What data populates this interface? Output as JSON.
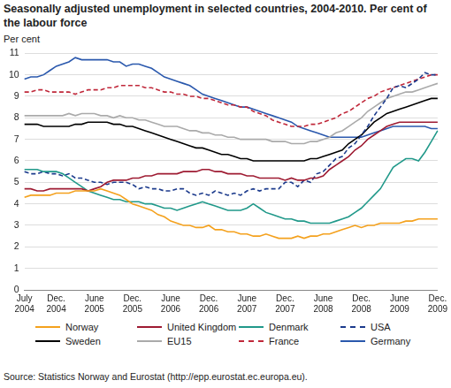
{
  "chart_data": {
    "type": "line",
    "title": "Seasonally adjusted unemployment in selected countries, 2004-2010. Per cent of the labour force",
    "y_label": "Per cent",
    "source": "Source: Statistics Norway and Eurostat (http://epp.eurostat.ec.europa.eu).",
    "categories": [
      "July 2004",
      null,
      null,
      null,
      null,
      "Dec. 2004",
      null,
      null,
      null,
      null,
      null,
      "June 2005",
      null,
      null,
      null,
      null,
      null,
      "Dec. 2005",
      null,
      null,
      null,
      null,
      null,
      "June 2006",
      null,
      null,
      null,
      null,
      null,
      "Dec. 2006",
      null,
      null,
      null,
      null,
      null,
      "June 2007",
      null,
      null,
      null,
      null,
      null,
      "Dec. 2007",
      null,
      null,
      null,
      null,
      null,
      "June 2008",
      null,
      null,
      null,
      null,
      null,
      "Dec. 2008",
      null,
      null,
      null,
      null,
      null,
      "June 2009",
      null,
      null,
      null,
      null,
      null,
      "Dec. 2009"
    ],
    "ylim": [
      0,
      11
    ],
    "yticks": [
      0,
      1,
      2,
      3,
      4,
      5,
      6,
      7,
      8,
      9,
      10,
      11
    ],
    "grid": "y",
    "legend": "bottom",
    "series": [
      {
        "name": "Norway",
        "color": "#f4a11d",
        "line_style": "solid",
        "values": [
          4.3,
          4.4,
          4.4,
          4.4,
          4.4,
          4.5,
          4.5,
          4.5,
          4.6,
          4.6,
          4.6,
          4.6,
          4.7,
          4.6,
          4.5,
          4.4,
          4.2,
          4.0,
          3.9,
          3.8,
          3.7,
          3.5,
          3.4,
          3.2,
          3.1,
          3.0,
          3.0,
          2.9,
          2.9,
          3.0,
          2.8,
          2.8,
          2.7,
          2.7,
          2.6,
          2.6,
          2.5,
          2.5,
          2.6,
          2.5,
          2.4,
          2.4,
          2.4,
          2.5,
          2.4,
          2.5,
          2.5,
          2.6,
          2.6,
          2.7,
          2.8,
          2.9,
          3.0,
          2.9,
          3.0,
          3.0,
          3.1,
          3.1,
          3.1,
          3.1,
          3.2,
          3.2,
          3.3,
          3.3,
          3.3,
          3.3
        ]
      },
      {
        "name": "United Kingdom",
        "color": "#9e1b32",
        "line_style": "solid",
        "values": [
          4.7,
          4.7,
          4.6,
          4.6,
          4.7,
          4.7,
          4.7,
          4.7,
          4.7,
          4.7,
          4.6,
          4.7,
          4.8,
          5.0,
          5.1,
          5.1,
          5.1,
          5.2,
          5.2,
          5.3,
          5.3,
          5.4,
          5.4,
          5.4,
          5.4,
          5.5,
          5.5,
          5.5,
          5.6,
          5.6,
          5.5,
          5.5,
          5.4,
          5.4,
          5.4,
          5.3,
          5.3,
          5.2,
          5.2,
          5.2,
          5.2,
          5.1,
          5.2,
          5.1,
          5.1,
          5.2,
          5.2,
          5.3,
          5.6,
          5.8,
          6.0,
          6.2,
          6.5,
          6.7,
          7.0,
          7.2,
          7.4,
          7.6,
          7.7,
          7.8,
          7.8,
          7.8,
          7.8,
          7.8,
          7.8,
          7.8
        ]
      },
      {
        "name": "Denmark",
        "color": "#21998a",
        "line_style": "solid",
        "values": [
          5.6,
          5.6,
          5.6,
          5.5,
          5.5,
          5.5,
          5.4,
          5.2,
          5.0,
          4.8,
          4.6,
          4.5,
          4.4,
          4.3,
          4.2,
          4.2,
          4.1,
          4.1,
          4.1,
          4.0,
          4.0,
          3.9,
          3.8,
          3.8,
          3.7,
          3.8,
          3.9,
          4.0,
          4.1,
          4.0,
          3.9,
          3.8,
          3.7,
          3.7,
          3.7,
          3.8,
          4.0,
          3.8,
          3.6,
          3.5,
          3.4,
          3.3,
          3.3,
          3.2,
          3.2,
          3.1,
          3.1,
          3.1,
          3.1,
          3.2,
          3.3,
          3.4,
          3.6,
          3.8,
          4.1,
          4.4,
          4.7,
          5.2,
          5.7,
          5.9,
          6.1,
          6.1,
          6.0,
          6.4,
          6.9,
          7.4
        ]
      },
      {
        "name": "USA",
        "color": "#1b3a8c",
        "line_style": "dashed",
        "values": [
          5.5,
          5.4,
          5.4,
          5.5,
          5.4,
          5.4,
          5.3,
          5.4,
          5.2,
          5.2,
          5.1,
          5.0,
          5.0,
          4.9,
          5.0,
          5.0,
          5.0,
          4.9,
          4.7,
          4.8,
          4.7,
          4.7,
          4.6,
          4.6,
          4.7,
          4.7,
          4.5,
          4.4,
          4.5,
          4.4,
          4.6,
          4.5,
          4.4,
          4.5,
          4.4,
          4.6,
          4.7,
          4.6,
          4.7,
          4.7,
          4.7,
          5.0,
          5.0,
          4.8,
          5.1,
          5.0,
          5.4,
          5.5,
          5.8,
          6.1,
          6.2,
          6.6,
          6.8,
          7.2,
          7.6,
          8.1,
          8.5,
          8.9,
          9.4,
          9.5,
          9.4,
          9.6,
          9.8,
          10.1,
          10.0,
          10.0
        ]
      },
      {
        "name": "Sweden",
        "color": "#000000",
        "line_style": "solid",
        "values": [
          7.7,
          7.7,
          7.7,
          7.6,
          7.6,
          7.6,
          7.6,
          7.6,
          7.7,
          7.7,
          7.8,
          7.8,
          7.8,
          7.8,
          7.7,
          7.7,
          7.6,
          7.6,
          7.5,
          7.4,
          7.3,
          7.2,
          7.1,
          7.0,
          6.9,
          6.8,
          6.7,
          6.6,
          6.6,
          6.5,
          6.4,
          6.3,
          6.3,
          6.2,
          6.1,
          6.1,
          6.0,
          6.0,
          6.0,
          6.0,
          6.0,
          6.0,
          6.0,
          6.0,
          6.0,
          6.1,
          6.1,
          6.2,
          6.3,
          6.4,
          6.5,
          6.8,
          7.0,
          7.2,
          7.5,
          7.8,
          8.0,
          8.2,
          8.3,
          8.4,
          8.5,
          8.6,
          8.7,
          8.8,
          8.9,
          8.9
        ]
      },
      {
        "name": "EU15",
        "color": "#aaaaaa",
        "line_style": "solid",
        "values": [
          8.1,
          8.1,
          8.1,
          8.1,
          8.1,
          8.1,
          8.1,
          8.2,
          8.1,
          8.2,
          8.2,
          8.2,
          8.1,
          8.1,
          8.0,
          8.1,
          8.0,
          8.0,
          7.9,
          7.9,
          7.8,
          7.7,
          7.6,
          7.6,
          7.6,
          7.5,
          7.4,
          7.4,
          7.3,
          7.3,
          7.2,
          7.2,
          7.1,
          7.1,
          7.0,
          7.0,
          7.0,
          7.0,
          7.0,
          6.9,
          6.9,
          6.9,
          6.8,
          6.8,
          6.8,
          6.9,
          6.9,
          7.0,
          7.1,
          7.3,
          7.4,
          7.6,
          7.8,
          8.0,
          8.3,
          8.5,
          8.7,
          8.9,
          9.0,
          9.1,
          9.2,
          9.2,
          9.3,
          9.4,
          9.5,
          9.6
        ]
      },
      {
        "name": "France",
        "color": "#c0283a",
        "line_style": "dashed",
        "values": [
          9.2,
          9.2,
          9.3,
          9.3,
          9.2,
          9.2,
          9.2,
          9.2,
          9.1,
          9.2,
          9.3,
          9.3,
          9.3,
          9.4,
          9.4,
          9.5,
          9.5,
          9.5,
          9.5,
          9.4,
          9.4,
          9.3,
          9.2,
          9.2,
          9.1,
          9.1,
          9.0,
          9.0,
          8.9,
          8.9,
          8.8,
          8.7,
          8.6,
          8.6,
          8.5,
          8.5,
          8.3,
          8.2,
          8.1,
          7.9,
          7.8,
          7.7,
          7.6,
          7.6,
          7.6,
          7.7,
          7.7,
          7.8,
          7.9,
          8.0,
          8.2,
          8.3,
          8.5,
          8.7,
          8.9,
          9.0,
          9.2,
          9.3,
          9.4,
          9.5,
          9.6,
          9.7,
          9.8,
          9.9,
          10.0,
          10.0
        ]
      },
      {
        "name": "Germany",
        "color": "#2a58ad",
        "line_style": "solid",
        "values": [
          9.8,
          9.9,
          9.9,
          10.0,
          10.2,
          10.4,
          10.5,
          10.6,
          10.8,
          10.7,
          10.7,
          10.7,
          10.7,
          10.7,
          10.6,
          10.6,
          10.4,
          10.5,
          10.5,
          10.4,
          10.3,
          10.1,
          9.9,
          9.8,
          9.7,
          9.6,
          9.5,
          9.3,
          9.1,
          9.0,
          8.9,
          8.8,
          8.7,
          8.6,
          8.5,
          8.5,
          8.4,
          8.3,
          8.2,
          8.1,
          8.0,
          7.9,
          7.8,
          7.6,
          7.5,
          7.4,
          7.3,
          7.2,
          7.1,
          7.1,
          7.1,
          7.1,
          7.1,
          7.1,
          7.2,
          7.3,
          7.4,
          7.5,
          7.6,
          7.6,
          7.6,
          7.6,
          7.6,
          7.6,
          7.5,
          7.5
        ]
      }
    ]
  }
}
